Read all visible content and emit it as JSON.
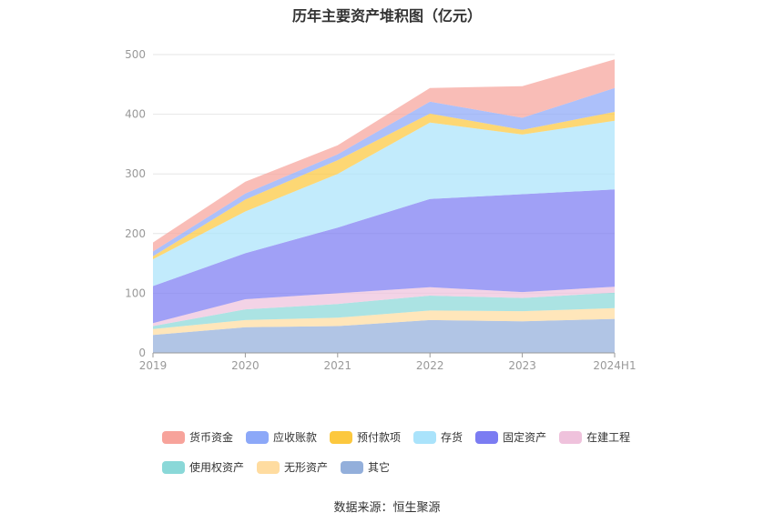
{
  "chart_data": {
    "type": "area",
    "stacked": true,
    "title": "历年主要资产堆积图（亿元）",
    "categories": [
      "2019",
      "2020",
      "2021",
      "2022",
      "2023",
      "2024H1"
    ],
    "yticks": [
      0,
      100,
      200,
      300,
      400,
      500
    ],
    "ylim": [
      0,
      500
    ],
    "grid": true,
    "legend_position": "bottom",
    "series": [
      {
        "name": "其它",
        "color": "#93afdb",
        "values": [
          30,
          43,
          45,
          55,
          53,
          57
        ]
      },
      {
        "name": "无形资产",
        "color": "#ffdca0",
        "values": [
          10,
          12,
          14,
          16,
          17,
          18
        ]
      },
      {
        "name": "使用权资产",
        "color": "#8ad8d8",
        "values": [
          5,
          18,
          23,
          25,
          22,
          26
        ]
      },
      {
        "name": "在建工程",
        "color": "#efc2dc",
        "values": [
          5,
          17,
          18,
          14,
          10,
          10
        ]
      },
      {
        "name": "固定资产",
        "color": "#7b7cf2",
        "values": [
          62,
          77,
          110,
          148,
          164,
          163
        ]
      },
      {
        "name": "存货",
        "color": "#aae3fb",
        "values": [
          45,
          70,
          90,
          128,
          100,
          115
        ]
      },
      {
        "name": "预付款项",
        "color": "#fcc83e",
        "values": [
          5,
          20,
          23,
          15,
          8,
          15
        ]
      },
      {
        "name": "应收账款",
        "color": "#8ca8f8",
        "values": [
          8,
          10,
          10,
          20,
          20,
          40
        ]
      },
      {
        "name": "货币资金",
        "color": "#f7a39b",
        "values": [
          15,
          20,
          15,
          23,
          53,
          48
        ]
      }
    ],
    "legend_order": [
      "货币资金",
      "应收账款",
      "预付款项",
      "存货",
      "固定资产",
      "在建工程",
      "使用权资产",
      "无形资产",
      "其它"
    ]
  },
  "source_text": "数据来源：恒生聚源"
}
